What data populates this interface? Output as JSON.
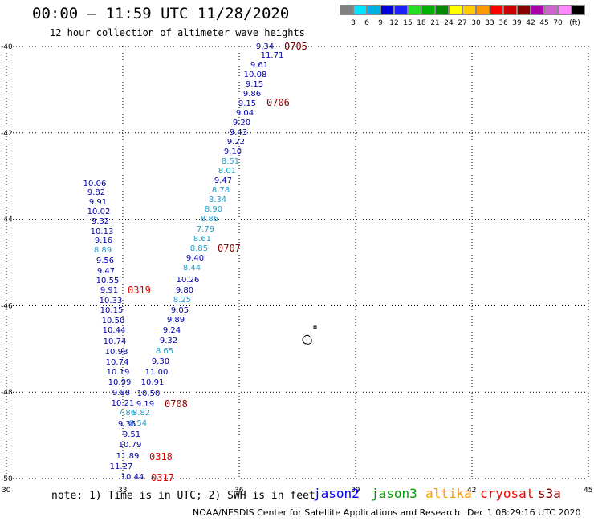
{
  "title": "00:00 – 11:59 UTC 11/28/2020",
  "subtitle": "12 hour collection of altimeter wave heights",
  "legend": {
    "colors": [
      "#808080",
      "#00e5ff",
      "#00b0e0",
      "#0000d8",
      "#2020ff",
      "#20e020",
      "#00b000",
      "#008800",
      "#ffff00",
      "#ffcc00",
      "#ff9900",
      "#ff0000",
      "#cc0000",
      "#880000",
      "#aa00aa",
      "#cc66cc",
      "#ff88ff",
      "#000000"
    ],
    "labels": [
      "3",
      "6",
      "9",
      "12",
      "15",
      "18",
      "21",
      "24",
      "27",
      "30",
      "33",
      "36",
      "39",
      "42",
      "45",
      "70",
      "(ft)"
    ]
  },
  "axes": {
    "lon_ticks": [
      "30",
      "33",
      "36",
      "39",
      "42",
      "45"
    ],
    "lat_ticks": [
      "-40",
      "-42",
      "-44",
      "-46",
      "-48",
      "-50"
    ]
  },
  "points": [
    {
      "v": "9.34",
      "c": "#0000b0"
    },
    {
      "v": "11.71",
      "c": "#0000b0"
    },
    {
      "v": "9.61",
      "c": "#0000b0"
    },
    {
      "v": "10.08",
      "c": "#0000b0"
    },
    {
      "v": "9.15",
      "c": "#0000b0"
    },
    {
      "v": "9.86",
      "c": "#0000b0"
    },
    {
      "v": "9.15",
      "c": "#0000b0"
    },
    {
      "v": "9.04",
      "c": "#0000b0"
    },
    {
      "v": "9.20",
      "c": "#0000b0"
    },
    {
      "v": "9.43",
      "c": "#0000b0"
    },
    {
      "v": "9.22",
      "c": "#0000b0"
    },
    {
      "v": "9.10",
      "c": "#0000b0"
    },
    {
      "v": "8.51",
      "c": "#20a0d0"
    },
    {
      "v": "8.01",
      "c": "#20a0d0"
    },
    {
      "v": "9.47",
      "c": "#0000b0"
    },
    {
      "v": "8.78",
      "c": "#20a0d0"
    },
    {
      "v": "8.34",
      "c": "#20a0d0"
    },
    {
      "v": "8.90",
      "c": "#20a0d0"
    },
    {
      "v": "8.86",
      "c": "#20a0d0"
    },
    {
      "v": "7.79",
      "c": "#20a0d0"
    },
    {
      "v": "8.61",
      "c": "#20a0d0"
    },
    {
      "v": "8.85",
      "c": "#20a0d0"
    },
    {
      "v": "9.40",
      "c": "#0000b0"
    },
    {
      "v": "8.44",
      "c": "#20a0d0"
    },
    {
      "v": "10.26",
      "c": "#0000b0"
    },
    {
      "v": "9.80",
      "c": "#0000b0"
    },
    {
      "v": "8.25",
      "c": "#20a0d0"
    },
    {
      "v": "9.05",
      "c": "#0000b0"
    },
    {
      "v": "9.89",
      "c": "#0000b0"
    },
    {
      "v": "9.24",
      "c": "#0000b0"
    },
    {
      "v": "9.32",
      "c": "#0000b0"
    },
    {
      "v": "8.65",
      "c": "#20a0d0"
    },
    {
      "v": "9.30",
      "c": "#0000b0"
    },
    {
      "v": "11.00",
      "c": "#0000b0"
    },
    {
      "v": "10.91",
      "c": "#0000b0"
    },
    {
      "v": "10.50",
      "c": "#0000b0"
    },
    {
      "v": "9.19",
      "c": "#0000b0"
    },
    {
      "v": "8.82",
      "c": "#20a0d0"
    },
    {
      "v": "8.54",
      "c": "#20a0d0"
    },
    {
      "v": "10.06",
      "c": "#0000b0"
    },
    {
      "v": "9.82",
      "c": "#0000b0"
    },
    {
      "v": "9.91",
      "c": "#0000b0"
    },
    {
      "v": "10.02",
      "c": "#0000b0"
    },
    {
      "v": "9.32",
      "c": "#0000b0"
    },
    {
      "v": "10.13",
      "c": "#0000b0"
    },
    {
      "v": "9.16",
      "c": "#0000b0"
    },
    {
      "v": "8.89",
      "c": "#20a0d0"
    },
    {
      "v": "9.56",
      "c": "#0000b0"
    },
    {
      "v": "9.47",
      "c": "#0000b0"
    },
    {
      "v": "10.55",
      "c": "#0000b0"
    },
    {
      "v": "9.91",
      "c": "#0000b0"
    },
    {
      "v": "10.33",
      "c": "#0000b0"
    },
    {
      "v": "10.15",
      "c": "#0000b0"
    },
    {
      "v": "10.50",
      "c": "#0000b0"
    },
    {
      "v": "10.44",
      "c": "#0000b0"
    },
    {
      "v": "10.74",
      "c": "#0000b0"
    },
    {
      "v": "10.98",
      "c": "#0000b0"
    },
    {
      "v": "10.74",
      "c": "#0000b0"
    },
    {
      "v": "10.19",
      "c": "#0000b0"
    },
    {
      "v": "10.99",
      "c": "#0000b0"
    },
    {
      "v": "9.88",
      "c": "#0000b0"
    },
    {
      "v": "10.21",
      "c": "#0000b0"
    },
    {
      "v": "7.86",
      "c": "#20a0d0"
    },
    {
      "v": "9.36",
      "c": "#0000b0"
    },
    {
      "v": "9.51",
      "c": "#0000b0"
    },
    {
      "v": "10.79",
      "c": "#0000b0"
    },
    {
      "v": "11.89",
      "c": "#0000b0"
    },
    {
      "v": "11.27",
      "c": "#0000b0"
    },
    {
      "v": "10.44",
      "c": "#0000b0"
    }
  ],
  "time_labels": [
    {
      "t": "0705",
      "c": "#800000"
    },
    {
      "t": "0706",
      "c": "#800000"
    },
    {
      "t": "0707",
      "c": "#800000"
    },
    {
      "t": "0708",
      "c": "#800000"
    },
    {
      "t": "0319",
      "c": "#e00000"
    },
    {
      "t": "0318",
      "c": "#e00000"
    },
    {
      "t": "0317",
      "c": "#e00000"
    }
  ],
  "note": "note: 1) Time is in UTC; 2) SWH is in feet",
  "satellites": [
    {
      "name": "jason2",
      "color": "#0000ff"
    },
    {
      "name": "jason3",
      "color": "#00a000"
    },
    {
      "name": "altika",
      "color": "#ff9900"
    },
    {
      "name": "cryosat",
      "color": "#ff0000"
    },
    {
      "name": "s3a",
      "color": "#800000"
    }
  ],
  "credit": "NOAA/NESDIS Center for Satellite Applications and Research",
  "timestamp": "Dec  1 08:29:16 UTC 2020"
}
